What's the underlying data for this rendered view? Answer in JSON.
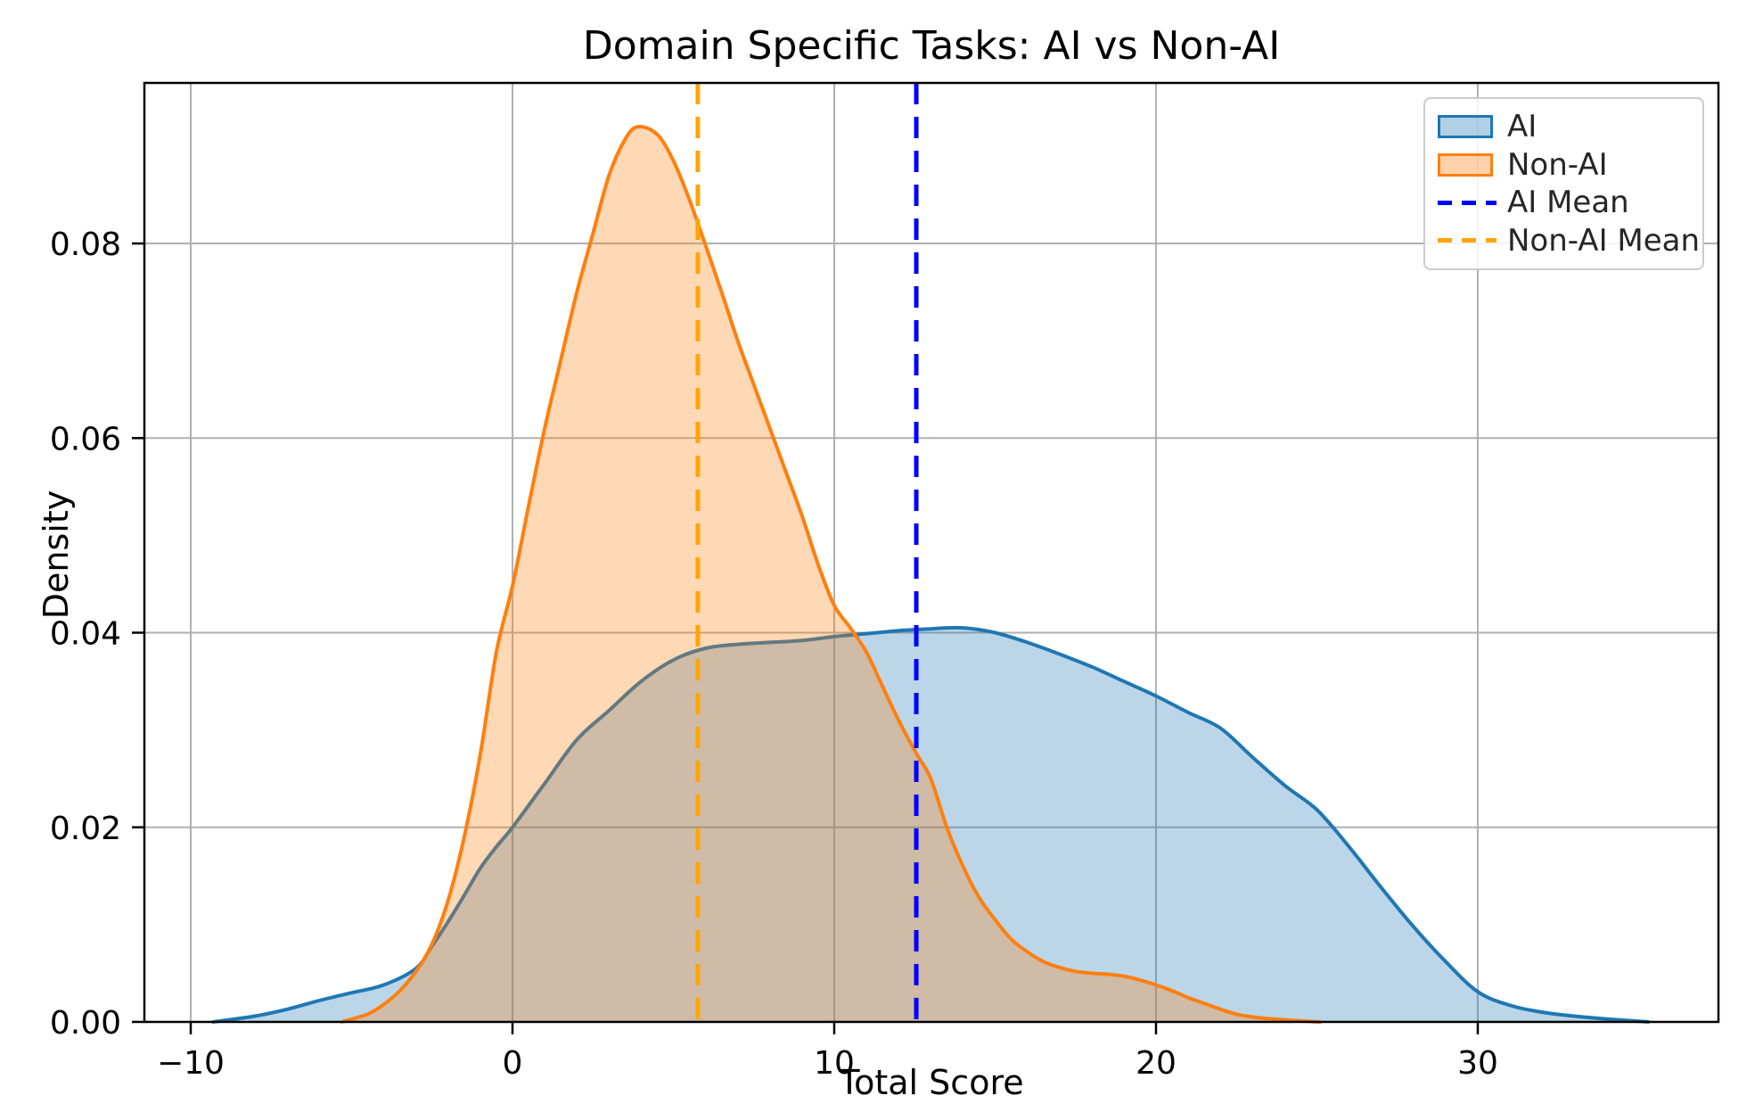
{
  "figure": {
    "title": "Domain Specific Tasks: AI vs Non-AI",
    "xlabel": "Total Score",
    "ylabel": "Density",
    "background_color": "#ffffff",
    "grid_color": "#b0b0b0",
    "spine_color": "#000000",
    "text_color": "#000000"
  },
  "legend": {
    "items": [
      {
        "label": "AI",
        "type": "patch",
        "color": "#1f77b4"
      },
      {
        "label": "Non-AI",
        "type": "patch",
        "color": "#ff7f0e"
      },
      {
        "label": "AI Mean",
        "type": "dashed-line",
        "color": "#0000ff"
      },
      {
        "label": "Non-AI Mean",
        "type": "dashed-line",
        "color": "#ffa500"
      }
    ]
  },
  "chart_data": {
    "type": "area",
    "subtype": "kde-density",
    "title": "Domain Specific Tasks: AI vs Non-AI",
    "xlabel": "Total Score",
    "ylabel": "Density",
    "xlim": [
      -11.44,
      37.48
    ],
    "ylim": [
      0,
      0.0965
    ],
    "x_ticks": [
      -10,
      0,
      10,
      20,
      30
    ],
    "y_ticks": [
      0.0,
      0.02,
      0.04,
      0.06,
      0.08
    ],
    "grid": true,
    "legend_position": "upper right",
    "series": [
      {
        "name": "AI",
        "color": "#1f77b4",
        "fill_alpha": 0.3,
        "points": [
          [
            -9.3,
            0
          ],
          [
            -8,
            0.0006
          ],
          [
            -7,
            0.0013
          ],
          [
            -6,
            0.0022
          ],
          [
            -5,
            0.003
          ],
          [
            -4,
            0.0038
          ],
          [
            -3,
            0.0055
          ],
          [
            -2.5,
            0.0078
          ],
          [
            -2,
            0.0103
          ],
          [
            -1.5,
            0.013
          ],
          [
            -1,
            0.0158
          ],
          [
            -0.5,
            0.018
          ],
          [
            0,
            0.02
          ],
          [
            1,
            0.0245
          ],
          [
            2,
            0.029
          ],
          [
            3,
            0.032
          ],
          [
            4,
            0.035
          ],
          [
            5,
            0.0372
          ],
          [
            6,
            0.0384
          ],
          [
            7,
            0.0388
          ],
          [
            8,
            0.039
          ],
          [
            9,
            0.0392
          ],
          [
            10,
            0.0396
          ],
          [
            11,
            0.0399
          ],
          [
            12,
            0.0402
          ],
          [
            13,
            0.0404
          ],
          [
            14,
            0.0405
          ],
          [
            15,
            0.04
          ],
          [
            16,
            0.039
          ],
          [
            17,
            0.0378
          ],
          [
            18,
            0.0365
          ],
          [
            19,
            0.035
          ],
          [
            20,
            0.0335
          ],
          [
            21,
            0.0318
          ],
          [
            22,
            0.0302
          ],
          [
            23,
            0.0272
          ],
          [
            24,
            0.0243
          ],
          [
            25,
            0.0218
          ],
          [
            26,
            0.018
          ],
          [
            27,
            0.0138
          ],
          [
            28,
            0.0098
          ],
          [
            29,
            0.0062
          ],
          [
            30,
            0.0031
          ],
          [
            31,
            0.0017
          ],
          [
            32,
            0.001
          ],
          [
            33,
            0.0006
          ],
          [
            34,
            0.0003
          ],
          [
            35.3,
            0
          ]
        ]
      },
      {
        "name": "Non-AI",
        "color": "#ff7f0e",
        "fill_alpha": 0.3,
        "points": [
          [
            -5.3,
            0
          ],
          [
            -4.5,
            0.0008
          ],
          [
            -4,
            0.0018
          ],
          [
            -3.5,
            0.0032
          ],
          [
            -3,
            0.0052
          ],
          [
            -2.5,
            0.008
          ],
          [
            -2,
            0.0125
          ],
          [
            -1.5,
            0.019
          ],
          [
            -1,
            0.0275
          ],
          [
            -0.5,
            0.038
          ],
          [
            0,
            0.0448
          ],
          [
            0.5,
            0.053
          ],
          [
            1,
            0.061
          ],
          [
            1.5,
            0.068
          ],
          [
            2,
            0.075
          ],
          [
            2.5,
            0.081
          ],
          [
            3,
            0.087
          ],
          [
            3.5,
            0.0907
          ],
          [
            3.9,
            0.092
          ],
          [
            4.5,
            0.0912
          ],
          [
            5,
            0.0885
          ],
          [
            5.5,
            0.0845
          ],
          [
            6,
            0.0798
          ],
          [
            6.5,
            0.075
          ],
          [
            7,
            0.07
          ],
          [
            7.5,
            0.0655
          ],
          [
            8,
            0.061
          ],
          [
            8.5,
            0.0565
          ],
          [
            9,
            0.052
          ],
          [
            9.5,
            0.047
          ],
          [
            10,
            0.0428
          ],
          [
            10.5,
            0.0405
          ],
          [
            11,
            0.038
          ],
          [
            11.5,
            0.0345
          ],
          [
            12,
            0.031
          ],
          [
            12.55,
            0.0276
          ],
          [
            13,
            0.025
          ],
          [
            13.5,
            0.02
          ],
          [
            14,
            0.016
          ],
          [
            14.5,
            0.0128
          ],
          [
            15,
            0.0105
          ],
          [
            15.5,
            0.0085
          ],
          [
            16,
            0.0072
          ],
          [
            16.5,
            0.0062
          ],
          [
            17,
            0.0056
          ],
          [
            17.5,
            0.0052
          ],
          [
            18,
            0.005
          ],
          [
            18.5,
            0.0049
          ],
          [
            19,
            0.0047
          ],
          [
            19.5,
            0.0043
          ],
          [
            20,
            0.0038
          ],
          [
            20.5,
            0.0032
          ],
          [
            21,
            0.0025
          ],
          [
            21.5,
            0.0019
          ],
          [
            22,
            0.0013
          ],
          [
            22.5,
            0.0008
          ],
          [
            23,
            0.0005
          ],
          [
            24,
            0.0002
          ],
          [
            25.1,
            0
          ]
        ]
      }
    ],
    "mean_lines": [
      {
        "name": "AI Mean",
        "x": 12.55,
        "color": "#0000ff",
        "style": "dashed"
      },
      {
        "name": "Non-AI Mean",
        "x": 5.76,
        "color": "#ffa500",
        "style": "dashed"
      }
    ]
  }
}
